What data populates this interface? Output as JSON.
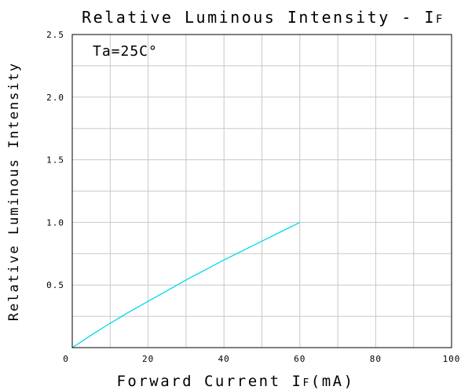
{
  "chart_data": {
    "type": "line",
    "title": "Relative Luminous Intensity - I",
    "title_sub": "F",
    "annotation": "Ta=25C°",
    "xlabel_pre": "Forward Current I",
    "xlabel_sub": "F",
    "xlabel_post": "(mA)",
    "ylabel": "Relative Luminous Intensity",
    "xlim": [
      0,
      100
    ],
    "ylim": [
      0,
      2.5
    ],
    "x_ticks": [
      0,
      20,
      40,
      60,
      80,
      100
    ],
    "x_tick_labels": [
      "0",
      "20",
      "40",
      "60",
      "80",
      "100"
    ],
    "y_ticks": [
      0.5,
      1.0,
      1.5,
      2.0,
      2.5
    ],
    "y_tick_labels": [
      "0.5",
      "1.0",
      "1.5",
      "2.0",
      "2.5"
    ],
    "x_grid_step": 10,
    "y_grid_step": 0.25,
    "grid": true,
    "colors": {
      "line": "#00d8e8",
      "grid": "#c8c8c8",
      "frame": "#000000"
    },
    "series": [
      {
        "x": [
          0,
          5,
          10,
          15,
          20,
          25,
          30,
          35,
          40,
          45,
          50,
          55,
          60
        ],
        "y": [
          0,
          0.1,
          0.195,
          0.285,
          0.37,
          0.455,
          0.54,
          0.62,
          0.7,
          0.775,
          0.85,
          0.925,
          1.0
        ]
      }
    ]
  }
}
